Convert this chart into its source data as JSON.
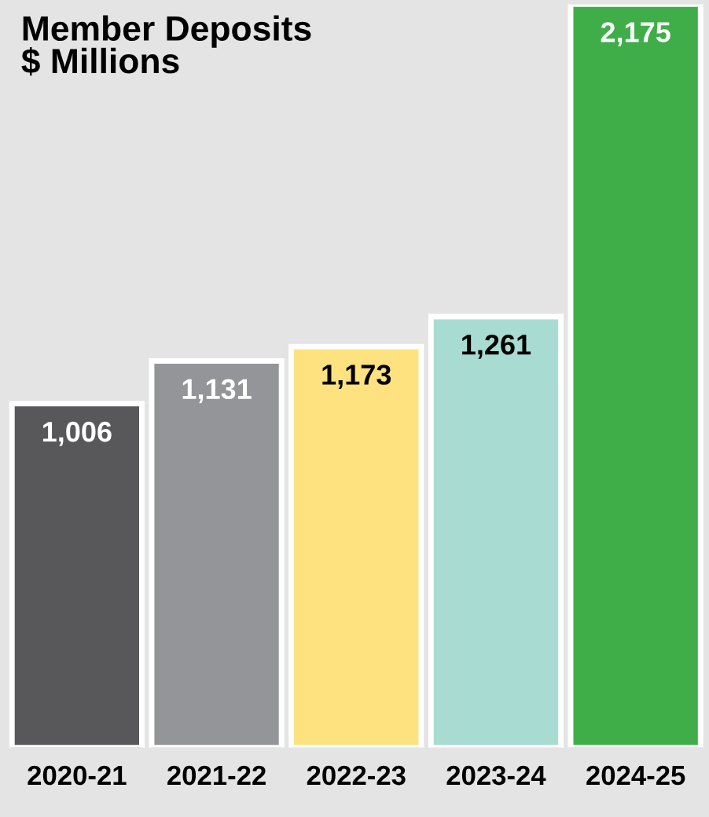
{
  "chart_data": {
    "type": "bar",
    "title": "Member Deposits\n$ Millions",
    "categories": [
      "2020-21",
      "2021-22",
      "2022-23",
      "2023-24",
      "2024-25"
    ],
    "values": [
      1006,
      1131,
      1173,
      1261,
      2175
    ],
    "colors": [
      "#58585a",
      "#939598",
      "#fde27f",
      "#a8dcd2",
      "#3fae49"
    ],
    "value_labels": [
      "1,006",
      "1,131",
      "1,173",
      "1,261",
      "2,175"
    ],
    "grid": false,
    "legend": false
  }
}
